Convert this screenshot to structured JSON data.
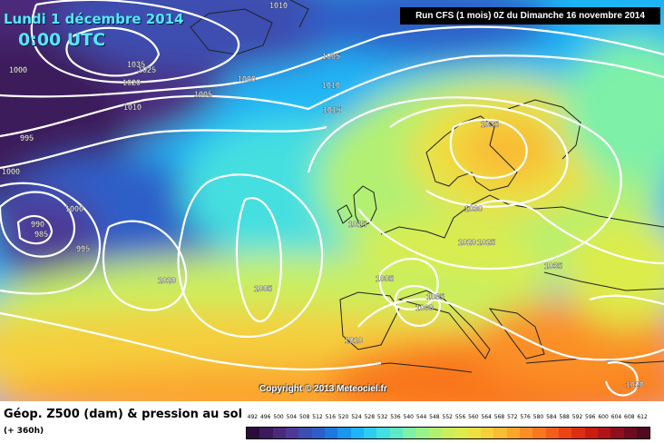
{
  "header": {
    "date": "Lundi 1 décembre 2014",
    "time": "0:00 UTC",
    "run_info": "Run CFS (1 mois) 0Z du Dimanche 16 novembre 2014"
  },
  "map": {
    "copyright": "Copyright © 2013 Meteociel.fr",
    "pressure_labels": [
      "1010",
      "1000",
      "1035",
      "1025",
      "1020",
      "1005",
      "1000",
      "1010",
      "995",
      "1005",
      "1010",
      "1015",
      "1000",
      "1035",
      "990",
      "985",
      "995",
      "1000",
      "1015",
      "1030",
      "1020",
      "1025",
      "1035",
      "1005",
      "1005",
      "1000",
      "1020",
      "1005",
      "1010",
      "1020"
    ],
    "coastline_color": "#222222",
    "isobar_color": "#ffffff"
  },
  "legend": {
    "title": "Géop. Z500 (dam) & pression au sol",
    "subtitle": "(+ 360h)",
    "scale_values": [
      "492",
      "496",
      "500",
      "504",
      "508",
      "512",
      "516",
      "520",
      "524",
      "528",
      "532",
      "536",
      "540",
      "544",
      "548",
      "552",
      "556",
      "560",
      "564",
      "568",
      "572",
      "576",
      "580",
      "584",
      "588",
      "592",
      "596",
      "600",
      "604",
      "608",
      "612"
    ],
    "scale_colors": [
      "#2b0a3d",
      "#3c1a5b",
      "#4b2a7b",
      "#4e3a96",
      "#3e4db0",
      "#2e5fc8",
      "#1e78e0",
      "#1b95ee",
      "#1fb4f5",
      "#2dcdf0",
      "#44dfe0",
      "#5ee8c6",
      "#7ef0a8",
      "#98f28a",
      "#b2f072",
      "#c9ef5e",
      "#dcec4c",
      "#ece043",
      "#f5cf3c",
      "#f9bc35",
      "#fba62d",
      "#fb8f26",
      "#f9771f",
      "#f45e1a",
      "#ec4515",
      "#de2e12",
      "#c91d12",
      "#b01418",
      "#8f0f1c",
      "#6e0c1f",
      "#500b20"
    ]
  }
}
